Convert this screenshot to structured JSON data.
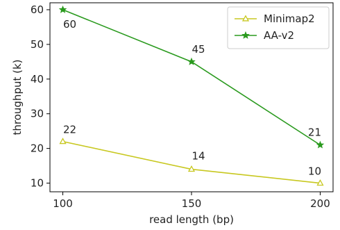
{
  "chart_data": {
    "type": "line",
    "x": [
      100,
      150,
      200
    ],
    "xlabel": "read length (bp)",
    "ylabel": "throughput (k)",
    "xlim": [
      95,
      205
    ],
    "ylim": [
      7.5,
      62
    ],
    "xticks": [
      100,
      150,
      200
    ],
    "yticks": [
      10,
      20,
      30,
      40,
      50,
      60
    ],
    "grid": false,
    "legend": "top-right",
    "series": [
      {
        "name": "Minimap2",
        "values": [
          22,
          14,
          10
        ],
        "labels": [
          "22",
          "14",
          "10"
        ],
        "color": "#c8c820",
        "marker": "triangle-open"
      },
      {
        "name": "AA-v2",
        "values": [
          60,
          45,
          21
        ],
        "labels": [
          "60",
          "45",
          "21"
        ],
        "color": "#2a9a1e",
        "marker": "star"
      }
    ]
  }
}
